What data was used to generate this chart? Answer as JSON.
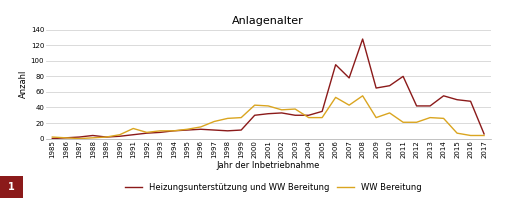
{
  "title": "Anlagenalter",
  "xlabel": "Jahr der Inbetriebnahme",
  "ylabel": "Anzahl",
  "years": [
    1985,
    1986,
    1987,
    1988,
    1989,
    1990,
    1991,
    1992,
    1993,
    1994,
    1995,
    1996,
    1997,
    1998,
    1999,
    2000,
    2001,
    2002,
    2003,
    2004,
    2005,
    2006,
    2007,
    2008,
    2009,
    2010,
    2011,
    2012,
    2013,
    2014,
    2015,
    2016,
    2017
  ],
  "heizung_ww": [
    0,
    1,
    2,
    4,
    2,
    3,
    5,
    7,
    8,
    10,
    11,
    12,
    11,
    10,
    11,
    30,
    32,
    33,
    30,
    30,
    35,
    95,
    78,
    128,
    65,
    68,
    80,
    42,
    42,
    55,
    50,
    48,
    6
  ],
  "ww": [
    2,
    1,
    0,
    1,
    2,
    5,
    13,
    8,
    10,
    10,
    12,
    15,
    22,
    26,
    27,
    43,
    42,
    37,
    38,
    27,
    27,
    53,
    43,
    55,
    27,
    33,
    21,
    21,
    27,
    26,
    7,
    4,
    4
  ],
  "heizung_color": "#8B1A1A",
  "ww_color": "#DAA520",
  "ylim": [
    0,
    140
  ],
  "yticks": [
    0,
    20,
    40,
    60,
    80,
    100,
    120,
    140
  ],
  "legend_heizung": "Heizungsunterstützung und WW Bereitung",
  "legend_ww": "WW Bereitung",
  "background_color": "#ffffff",
  "grid_color": "#cccccc",
  "label_fontsize": 6.0,
  "title_fontsize": 8,
  "tick_fontsize": 5.0,
  "line_width": 1.0,
  "number_label": "1",
  "number_bg_color": "#8B1A1A"
}
